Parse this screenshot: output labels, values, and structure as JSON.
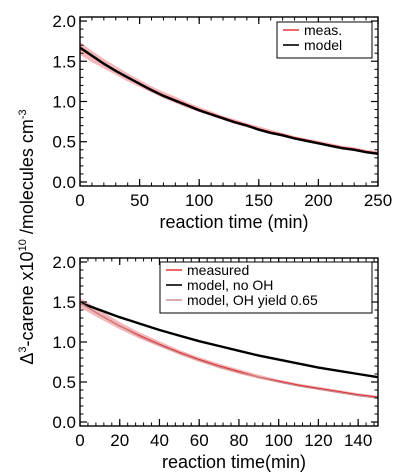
{
  "ylabel_shared": {
    "prefix": "Δ",
    "sup1": "3",
    "mid": "-carene x10",
    "sup2": "10",
    "suffix": " /molecules cm",
    "sup3": "-3"
  },
  "chart_data": [
    {
      "type": "line",
      "xlabel": "reaction time (min)",
      "xlim": [
        0,
        250
      ],
      "ylim": [
        -0.05,
        2.05
      ],
      "xticks": [
        0,
        50,
        100,
        150,
        200,
        250
      ],
      "yticks": [
        0.0,
        0.5,
        1.0,
        1.5,
        2.0
      ],
      "xtick_labels": [
        "0",
        "50",
        "100",
        "150",
        "200",
        "250"
      ],
      "ytick_labels": [
        "0.0",
        "0.5",
        "1.0",
        "1.5",
        "2.0"
      ],
      "legend_position": "top-right",
      "series": [
        {
          "name": "meas.",
          "color": "#e8242a",
          "band_color": "#f4b8ba",
          "x": [
            0,
            10,
            20,
            30,
            40,
            50,
            60,
            70,
            80,
            90,
            100,
            110,
            120,
            130,
            140,
            150,
            160,
            170,
            180,
            190,
            200,
            210,
            220,
            230,
            240,
            250
          ],
          "y": [
            1.66,
            1.56,
            1.47,
            1.38,
            1.3,
            1.22,
            1.15,
            1.08,
            1.02,
            0.96,
            0.9,
            0.85,
            0.8,
            0.75,
            0.71,
            0.66,
            0.62,
            0.59,
            0.55,
            0.52,
            0.49,
            0.46,
            0.43,
            0.41,
            0.38,
            0.36
          ],
          "y_low": [
            1.58,
            1.49,
            1.41,
            1.33,
            1.25,
            1.18,
            1.11,
            1.04,
            0.98,
            0.92,
            0.87,
            0.82,
            0.77,
            0.72,
            0.68,
            0.64,
            0.6,
            0.56,
            0.53,
            0.5,
            0.47,
            0.44,
            0.41,
            0.39,
            0.36,
            0.34
          ],
          "y_high": [
            1.74,
            1.63,
            1.53,
            1.44,
            1.35,
            1.27,
            1.19,
            1.12,
            1.06,
            0.99,
            0.93,
            0.88,
            0.82,
            0.78,
            0.73,
            0.69,
            0.65,
            0.61,
            0.57,
            0.54,
            0.51,
            0.48,
            0.45,
            0.43,
            0.4,
            0.38
          ]
        },
        {
          "name": "model",
          "color": "#000000",
          "x": [
            0,
            10,
            20,
            30,
            40,
            50,
            60,
            70,
            80,
            90,
            100,
            110,
            120,
            130,
            140,
            150,
            160,
            170,
            180,
            190,
            200,
            210,
            220,
            230,
            240,
            250
          ],
          "y": [
            1.67,
            1.57,
            1.47,
            1.38,
            1.3,
            1.22,
            1.14,
            1.07,
            1.01,
            0.95,
            0.89,
            0.84,
            0.79,
            0.74,
            0.7,
            0.65,
            0.61,
            0.58,
            0.54,
            0.51,
            0.48,
            0.45,
            0.42,
            0.4,
            0.37,
            0.35
          ]
        }
      ]
    },
    {
      "type": "line",
      "xlabel": "reaction time(min)",
      "xlim": [
        0,
        150
      ],
      "ylim": [
        -0.05,
        2.05
      ],
      "xticks": [
        0,
        20,
        40,
        60,
        80,
        100,
        120,
        140
      ],
      "yticks": [
        0.0,
        0.5,
        1.0,
        1.5,
        2.0
      ],
      "xtick_labels": [
        "0",
        "20",
        "40",
        "60",
        "80",
        "100",
        "120",
        "140"
      ],
      "ytick_labels": [
        "0.0",
        "0.5",
        "1.0",
        "1.5",
        "2.0"
      ],
      "legend_position": "top-right",
      "series": [
        {
          "name": "measured",
          "color": "#e8242a",
          "band_color": "#f4b8ba",
          "x": [
            0,
            10,
            20,
            30,
            40,
            50,
            60,
            70,
            80,
            90,
            100,
            110,
            120,
            130,
            140,
            150
          ],
          "y": [
            1.49,
            1.34,
            1.2,
            1.08,
            0.97,
            0.87,
            0.78,
            0.7,
            0.63,
            0.56,
            0.51,
            0.46,
            0.42,
            0.38,
            0.34,
            0.31
          ],
          "y_low": [
            1.43,
            1.29,
            1.16,
            1.04,
            0.94,
            0.84,
            0.75,
            0.67,
            0.6,
            0.54,
            0.49,
            0.44,
            0.4,
            0.36,
            0.32,
            0.29
          ],
          "y_high": [
            1.55,
            1.4,
            1.25,
            1.12,
            1.01,
            0.9,
            0.81,
            0.73,
            0.66,
            0.59,
            0.53,
            0.48,
            0.44,
            0.4,
            0.36,
            0.33
          ]
        },
        {
          "name": "model, no OH",
          "color": "#000000",
          "x": [
            0,
            10,
            20,
            30,
            40,
            50,
            60,
            70,
            80,
            90,
            100,
            110,
            120,
            130,
            140,
            150
          ],
          "y": [
            1.49,
            1.4,
            1.31,
            1.23,
            1.15,
            1.08,
            1.01,
            0.95,
            0.89,
            0.83,
            0.78,
            0.73,
            0.68,
            0.64,
            0.6,
            0.56
          ]
        },
        {
          "name": "model, OH yield 0.65",
          "color": "#c4888a",
          "x": [
            0,
            10,
            20,
            30,
            40,
            50,
            60,
            70,
            80,
            90,
            100,
            110,
            120,
            130,
            140,
            150
          ],
          "y": [
            1.49,
            1.34,
            1.2,
            1.07,
            0.96,
            0.86,
            0.77,
            0.69,
            0.62,
            0.56,
            0.5,
            0.45,
            0.41,
            0.37,
            0.33,
            0.3
          ]
        }
      ]
    }
  ]
}
